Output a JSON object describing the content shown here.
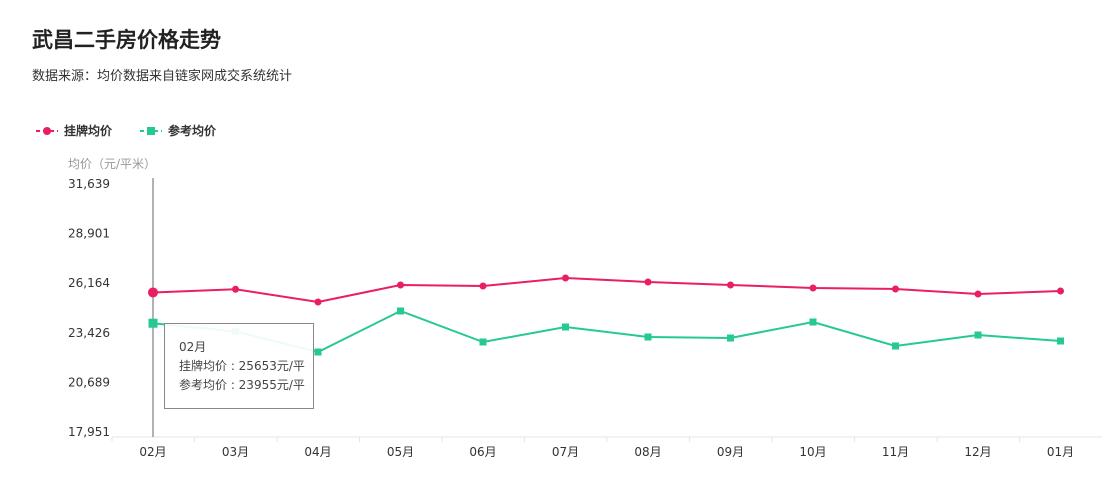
{
  "header": {
    "title": "武昌二手房价格走势",
    "subtitle": "数据来源：均价数据来自链家网成交系统统计"
  },
  "chart_data": {
    "type": "line",
    "ylabel": "均价（元/平米）",
    "ylim": [
      17951,
      31639
    ],
    "yticks": [
      "31,639",
      "28,901",
      "26,164",
      "23,426",
      "20,689",
      "17,951"
    ],
    "ytick_values": [
      31639,
      28901,
      26164,
      23426,
      20689,
      17951
    ],
    "categories": [
      "02月",
      "03月",
      "04月",
      "05月",
      "06月",
      "07月",
      "08月",
      "09月",
      "10月",
      "11月",
      "12月",
      "01月"
    ],
    "series": [
      {
        "name": "挂牌均价",
        "color": "#e91e63",
        "marker": "circle",
        "values": [
          25653,
          25830,
          25126,
          26065,
          26010,
          26450,
          26230,
          26065,
          25900,
          25845,
          25567,
          25733
        ]
      },
      {
        "name": "参考均价",
        "color": "#26c990",
        "marker": "square",
        "values": [
          23955,
          23500,
          22366,
          24630,
          22918,
          23746,
          23194,
          23139,
          24022,
          22697,
          23304,
          22973
        ]
      }
    ],
    "legend": "top-left",
    "grid": false
  },
  "tooltip": {
    "title": "02月",
    "line1": "挂牌均价 : 25653元/平",
    "line2": "参考均价 : 23955元/平"
  }
}
